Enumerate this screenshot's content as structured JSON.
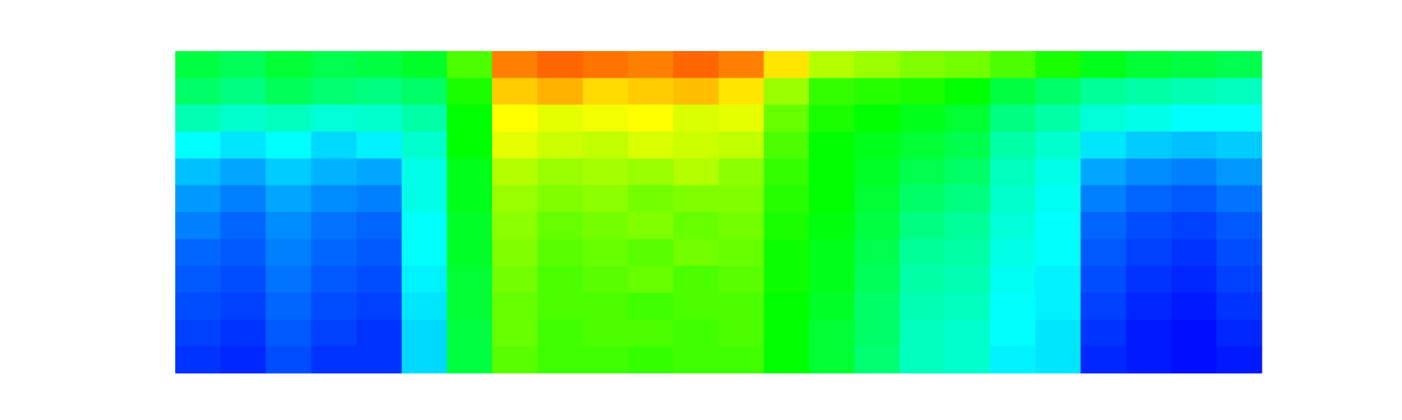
{
  "chart_data": {
    "type": "heatmap",
    "colormap": "hsv",
    "zlim": [
      0,
      1
    ],
    "values": [
      [
        0.55,
        0.53,
        0.56,
        0.54,
        0.55,
        0.57,
        0.66,
        0.9,
        0.92,
        0.91,
        0.9,
        0.92,
        0.9,
        0.82,
        0.74,
        0.72,
        0.7,
        0.69,
        0.66,
        0.62,
        0.58,
        0.56,
        0.55,
        0.54
      ],
      [
        0.52,
        0.5,
        0.53,
        0.51,
        0.5,
        0.52,
        0.62,
        0.84,
        0.86,
        0.83,
        0.84,
        0.85,
        0.82,
        0.72,
        0.64,
        0.63,
        0.62,
        0.6,
        0.55,
        0.52,
        0.48,
        0.47,
        0.46,
        0.45
      ],
      [
        0.46,
        0.44,
        0.45,
        0.43,
        0.44,
        0.47,
        0.6,
        0.8,
        0.78,
        0.79,
        0.8,
        0.77,
        0.78,
        0.68,
        0.62,
        0.6,
        0.58,
        0.56,
        0.5,
        0.47,
        0.43,
        0.42,
        0.4,
        0.4
      ],
      [
        0.4,
        0.38,
        0.4,
        0.37,
        0.39,
        0.44,
        0.6,
        0.78,
        0.76,
        0.75,
        0.77,
        0.76,
        0.75,
        0.66,
        0.6,
        0.58,
        0.56,
        0.54,
        0.47,
        0.44,
        0.38,
        0.36,
        0.35,
        0.36
      ],
      [
        0.35,
        0.33,
        0.36,
        0.34,
        0.33,
        0.42,
        0.58,
        0.74,
        0.72,
        0.73,
        0.72,
        0.74,
        0.71,
        0.64,
        0.6,
        0.57,
        0.54,
        0.52,
        0.45,
        0.42,
        0.33,
        0.31,
        0.3,
        0.32
      ],
      [
        0.32,
        0.3,
        0.33,
        0.31,
        0.3,
        0.42,
        0.58,
        0.72,
        0.7,
        0.71,
        0.69,
        0.7,
        0.7,
        0.63,
        0.6,
        0.56,
        0.52,
        0.5,
        0.44,
        0.41,
        0.3,
        0.28,
        0.27,
        0.29
      ],
      [
        0.3,
        0.28,
        0.31,
        0.29,
        0.28,
        0.4,
        0.57,
        0.71,
        0.68,
        0.69,
        0.7,
        0.68,
        0.69,
        0.62,
        0.59,
        0.55,
        0.5,
        0.48,
        0.43,
        0.4,
        0.28,
        0.26,
        0.25,
        0.27
      ],
      [
        0.28,
        0.27,
        0.3,
        0.28,
        0.27,
        0.4,
        0.57,
        0.7,
        0.67,
        0.68,
        0.67,
        0.69,
        0.68,
        0.61,
        0.58,
        0.54,
        0.48,
        0.47,
        0.42,
        0.4,
        0.27,
        0.25,
        0.24,
        0.26
      ],
      [
        0.27,
        0.26,
        0.29,
        0.27,
        0.26,
        0.39,
        0.56,
        0.69,
        0.66,
        0.67,
        0.68,
        0.66,
        0.67,
        0.61,
        0.58,
        0.53,
        0.47,
        0.46,
        0.41,
        0.39,
        0.26,
        0.24,
        0.23,
        0.25
      ],
      [
        0.26,
        0.25,
        0.28,
        0.26,
        0.25,
        0.38,
        0.56,
        0.68,
        0.66,
        0.66,
        0.65,
        0.66,
        0.66,
        0.6,
        0.57,
        0.52,
        0.46,
        0.45,
        0.4,
        0.39,
        0.25,
        0.23,
        0.22,
        0.24
      ],
      [
        0.25,
        0.24,
        0.27,
        0.25,
        0.24,
        0.37,
        0.55,
        0.68,
        0.65,
        0.66,
        0.66,
        0.65,
        0.66,
        0.6,
        0.56,
        0.52,
        0.45,
        0.44,
        0.4,
        0.38,
        0.24,
        0.22,
        0.21,
        0.23
      ],
      [
        0.24,
        0.23,
        0.26,
        0.24,
        0.24,
        0.37,
        0.55,
        0.67,
        0.65,
        0.65,
        0.64,
        0.65,
        0.65,
        0.6,
        0.56,
        0.51,
        0.45,
        0.44,
        0.39,
        0.38,
        0.23,
        0.22,
        0.21,
        0.22
      ]
    ]
  }
}
